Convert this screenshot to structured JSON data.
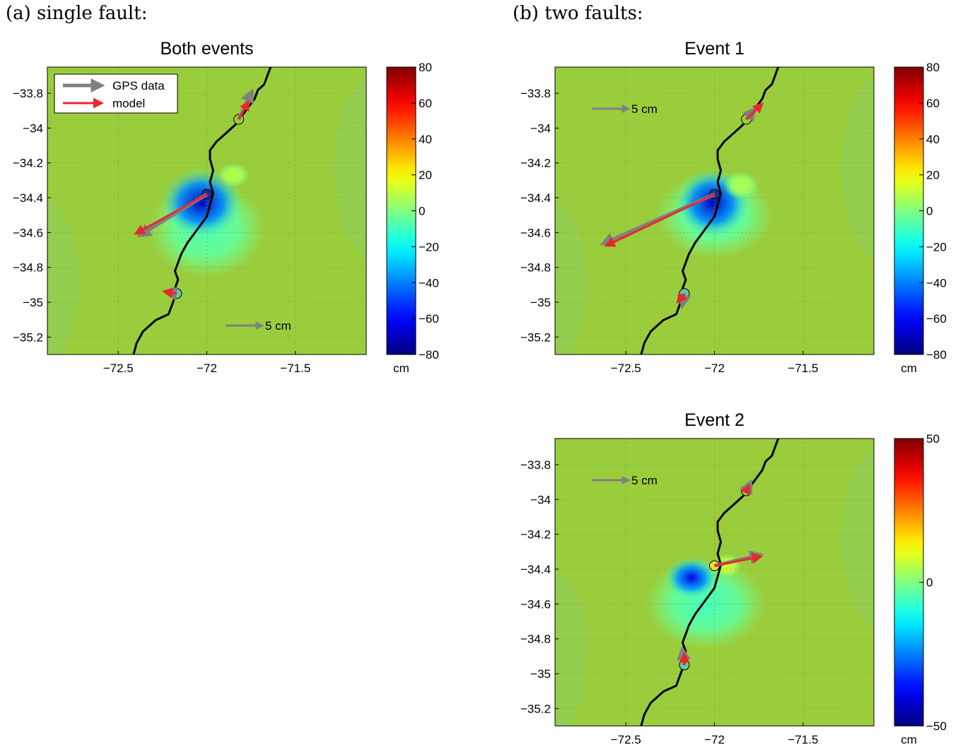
{
  "panel_labels": {
    "a": "(a) single fault:",
    "b": "(b) two faults:"
  },
  "colors": {
    "background_field": "#9acd3c",
    "coastline": "#000000",
    "gps_arrow": "#808080",
    "model_arrow": "#e8282c"
  },
  "chart_data": [
    {
      "type": "heatmap",
      "title": "Both events",
      "xlim": [
        -72.9,
        -71.1
      ],
      "ylim": [
        -35.3,
        -33.65
      ],
      "xticks": [
        -72.5,
        -72,
        -71.5
      ],
      "xtick_labels": [
        "−72.5",
        "−72",
        "−71.5"
      ],
      "yticks": [
        -33.8,
        -34,
        -34.2,
        -34.4,
        -34.6,
        -34.8,
        -35,
        -35.2
      ],
      "ytick_labels": [
        "−33.8",
        "−34",
        "−34.2",
        "−34.4",
        "−34.6",
        "−34.8",
        "−35",
        "−35.2"
      ],
      "grid": true,
      "colorbar": {
        "range": [
          -80,
          80
        ],
        "ticks": [
          80,
          60,
          40,
          20,
          0,
          -20,
          -40,
          -60,
          -80
        ],
        "tick_labels": [
          "80",
          "60",
          "40",
          "20",
          "0",
          "−20",
          "−40",
          "−60",
          "−80"
        ],
        "label": "cm"
      },
      "legend": {
        "placement": "top-left",
        "entries": [
          {
            "label": "GPS data",
            "color": "#808080"
          },
          {
            "label": "model",
            "color": "#e8282c"
          }
        ]
      },
      "scale_arrow": {
        "label": "5 cm",
        "placement": "bottom-right"
      },
      "stations": [
        {
          "lon": -71.82,
          "lat": -33.95,
          "color": "#9acd3c",
          "gps": [
            -71.75,
            -33.8
          ],
          "model": [
            -71.77,
            -33.86
          ]
        },
        {
          "lon": -72.0,
          "lat": -34.38,
          "color": "#1e2e9a",
          "gps": [
            -72.37,
            -34.61
          ],
          "model": [
            -72.39,
            -34.6
          ]
        },
        {
          "lon": -72.17,
          "lat": -34.95,
          "color": "#66c8aa",
          "gps": [
            -72.22,
            -34.94
          ],
          "model": [
            -72.23,
            -34.94
          ]
        }
      ],
      "anomalies": [
        {
          "lon": -72.03,
          "lat": -34.43,
          "rx": 0.23,
          "ry": 0.2,
          "value": -70
        },
        {
          "lon": -71.85,
          "lat": -34.27,
          "rx": 0.09,
          "ry": 0.07,
          "value": 10
        },
        {
          "lon": -72.0,
          "lat": -34.58,
          "rx": 0.33,
          "ry": 0.28,
          "value": -8
        }
      ]
    },
    {
      "type": "heatmap",
      "title": "Event 1",
      "xlim": [
        -72.9,
        -71.1
      ],
      "ylim": [
        -35.3,
        -33.65
      ],
      "xticks": [
        -72.5,
        -72,
        -71.5
      ],
      "xtick_labels": [
        "−72.5",
        "−72",
        "−71.5"
      ],
      "yticks": [
        -33.8,
        -34,
        -34.2,
        -34.4,
        -34.6,
        -34.8,
        -35,
        -35.2
      ],
      "ytick_labels": [
        "−33.8",
        "−34",
        "−34.2",
        "−34.4",
        "−34.6",
        "−34.8",
        "−35",
        "−35.2"
      ],
      "grid": true,
      "colorbar": {
        "range": [
          -80,
          80
        ],
        "ticks": [
          80,
          60,
          40,
          20,
          0,
          -20,
          -40,
          -60,
          -80
        ],
        "tick_labels": [
          "80",
          "60",
          "40",
          "20",
          "0",
          "−20",
          "−40",
          "−60",
          "−80"
        ],
        "label": "cm"
      },
      "scale_arrow": {
        "label": "5 cm",
        "placement": "top-left"
      },
      "stations": [
        {
          "lon": -71.82,
          "lat": -33.95,
          "color": "#9acd3c",
          "gps": [
            -71.78,
            -33.9
          ],
          "model": [
            -71.74,
            -33.87
          ]
        },
        {
          "lon": -72.0,
          "lat": -34.38,
          "color": "#1e2e9a",
          "gps": [
            -72.62,
            -34.66
          ],
          "model": [
            -72.6,
            -34.67
          ]
        },
        {
          "lon": -72.17,
          "lat": -34.95,
          "color": "#66c8aa",
          "gps": [
            -72.18,
            -35.01
          ],
          "model": [
            -72.2,
            -34.99
          ]
        }
      ],
      "anomalies": [
        {
          "lon": -72.01,
          "lat": -34.43,
          "rx": 0.21,
          "ry": 0.2,
          "value": -70
        },
        {
          "lon": -71.85,
          "lat": -34.33,
          "rx": 0.1,
          "ry": 0.08,
          "value": 8
        },
        {
          "lon": -72.0,
          "lat": -34.5,
          "rx": 0.33,
          "ry": 0.25,
          "value": -8
        }
      ]
    },
    {
      "type": "heatmap",
      "title": "Event 2",
      "xlim": [
        -72.9,
        -71.1
      ],
      "ylim": [
        -35.3,
        -33.65
      ],
      "xticks": [
        -72.5,
        -72,
        -71.5
      ],
      "xtick_labels": [
        "−72.5",
        "−72",
        "−71.5"
      ],
      "yticks": [
        -33.8,
        -34,
        -34.2,
        -34.4,
        -34.6,
        -34.8,
        -35,
        -35.2
      ],
      "ytick_labels": [
        "−33.8",
        "−34",
        "−34.2",
        "−34.4",
        "−34.6",
        "−34.8",
        "−35",
        "−35.2"
      ],
      "grid": true,
      "colorbar": {
        "range": [
          -50,
          50
        ],
        "ticks": [
          50,
          0,
          -50
        ],
        "tick_labels": [
          "50",
          "0",
          "−50"
        ],
        "label": "cm"
      },
      "scale_arrow": {
        "label": "5 cm",
        "placement": "top-left"
      },
      "stations": [
        {
          "lon": -71.82,
          "lat": -33.95,
          "color": "#9acd3c",
          "gps": [
            -71.8,
            -33.91
          ],
          "model": [
            -71.81,
            -33.93
          ]
        },
        {
          "lon": -72.0,
          "lat": -34.38,
          "color": "#e6e633",
          "gps": [
            -71.75,
            -34.32
          ],
          "model": [
            -71.75,
            -34.33
          ]
        },
        {
          "lon": -72.17,
          "lat": -34.95,
          "color": "#66c8aa",
          "gps": [
            -72.18,
            -34.87
          ],
          "model": [
            -72.17,
            -34.9
          ]
        }
      ],
      "anomalies": [
        {
          "lon": -72.13,
          "lat": -34.45,
          "rx": 0.15,
          "ry": 0.12,
          "value": -40
        },
        {
          "lon": -71.93,
          "lat": -34.38,
          "rx": 0.08,
          "ry": 0.07,
          "value": 10
        },
        {
          "lon": -72.05,
          "lat": -34.6,
          "rx": 0.34,
          "ry": 0.26,
          "value": -6
        }
      ]
    }
  ]
}
